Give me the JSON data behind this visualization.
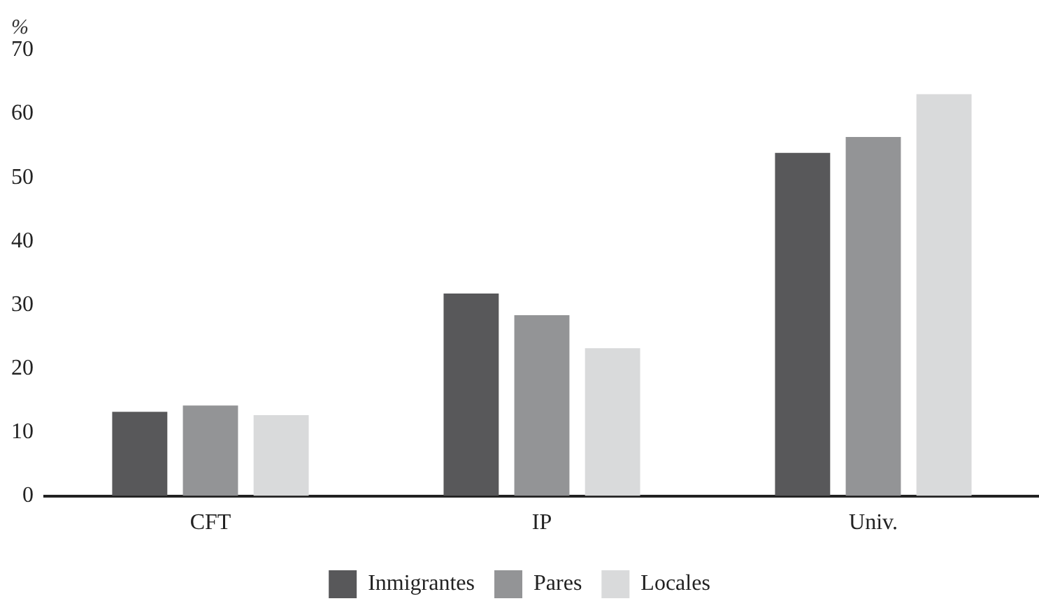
{
  "chart_data": {
    "type": "bar",
    "ylabel": "%",
    "categories": [
      "CFT",
      "IP",
      "Univ."
    ],
    "series": [
      {
        "name": "Inmigrantes",
        "color": "#58585a",
        "values": [
          13.2,
          31.8,
          53.9
        ]
      },
      {
        "name": "Pares",
        "color": "#939496",
        "values": [
          14.2,
          28.4,
          56.4
        ]
      },
      {
        "name": "Locales",
        "color": "#d9dadb",
        "values": [
          12.7,
          23.2,
          63.1
        ]
      }
    ],
    "ylim": [
      0,
      70
    ],
    "yticks": [
      0,
      10,
      20,
      30,
      40,
      50,
      60,
      70
    ],
    "grid": false,
    "legend": "bottom"
  }
}
